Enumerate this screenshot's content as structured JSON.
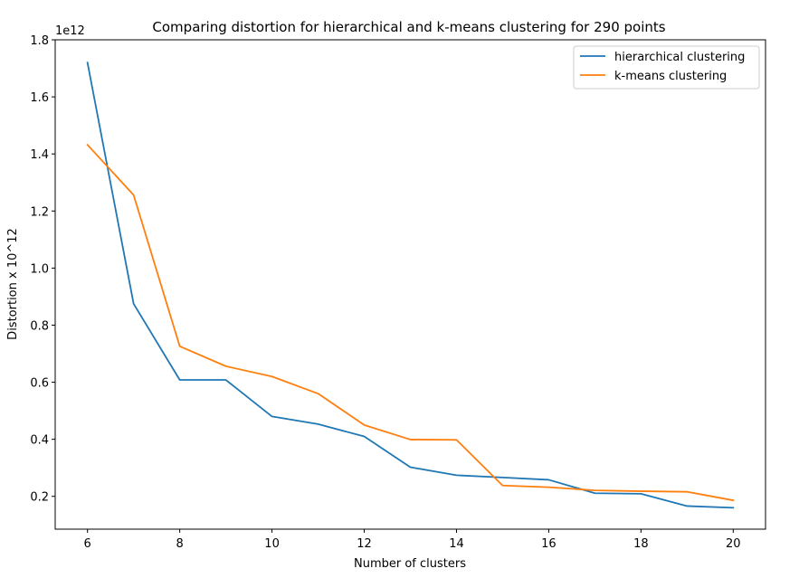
{
  "chart_data": {
    "type": "line",
    "title": "Comparing distortion for hierarchical and k-means clustering for 290 points",
    "xlabel": "Number of clusters",
    "ylabel": "Distortion x 10^12",
    "y_offset_label": "1e12",
    "xlim": [
      5.3,
      20.7
    ],
    "ylim": [
      0.085,
      1.8
    ],
    "x_ticks": [
      6,
      8,
      10,
      12,
      14,
      16,
      18,
      20
    ],
    "x_tick_labels": [
      "6",
      "8",
      "10",
      "12",
      "14",
      "16",
      "18",
      "20"
    ],
    "y_ticks": [
      0.2,
      0.4,
      0.6,
      0.8,
      1.0,
      1.2,
      1.4,
      1.6,
      1.8
    ],
    "y_tick_labels": [
      "0.2",
      "0.4",
      "0.6",
      "0.8",
      "1.0",
      "1.2",
      "1.4",
      "1.6",
      "1.8"
    ],
    "grid": false,
    "legend_position": "top-right",
    "x": [
      6,
      7,
      8,
      9,
      10,
      11,
      12,
      13,
      14,
      15,
      16,
      17,
      18,
      19,
      20
    ],
    "series": [
      {
        "name": "hierarchical clustering",
        "color": "#1f77b4",
        "values": [
          1.72,
          0.875,
          0.608,
          0.608,
          0.48,
          0.453,
          0.41,
          0.302,
          0.274,
          0.266,
          0.258,
          0.211,
          0.209,
          0.166,
          0.16
        ]
      },
      {
        "name": "k-means clustering",
        "color": "#ff7f0e",
        "values": [
          1.432,
          1.256,
          0.726,
          0.656,
          0.62,
          0.56,
          0.45,
          0.399,
          0.398,
          0.238,
          0.232,
          0.221,
          0.218,
          0.216,
          0.186
        ]
      }
    ]
  }
}
